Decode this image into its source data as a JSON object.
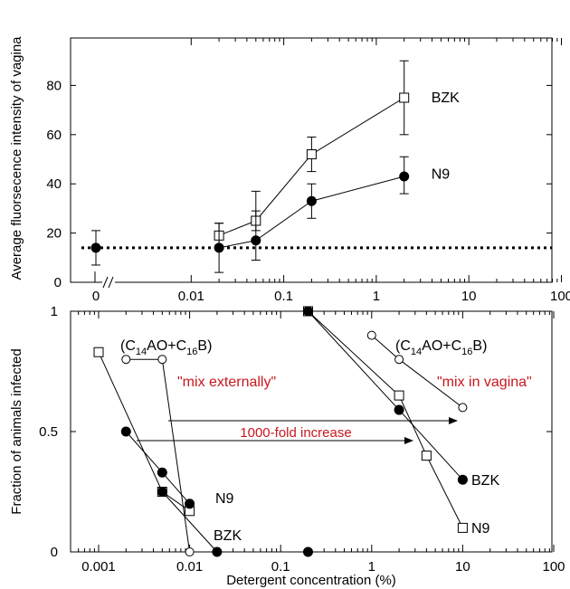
{
  "chart_data": [
    {
      "type": "line",
      "ylabel": "Average fluorsecence intensity of vagina",
      "xscale": "log",
      "xlim": [
        0.001,
        100
      ],
      "ylim": [
        0,
        90
      ],
      "yticks": [
        0,
        20,
        40,
        60,
        80
      ],
      "ytick_labels": [
        "0",
        "20",
        "40",
        "60",
        "80"
      ],
      "xtick_labels": [
        "0",
        "0.01",
        "0.1",
        "1",
        "10",
        "100"
      ],
      "axis_break": "//",
      "baseline": {
        "y": 14,
        "style": "dotted"
      },
      "series": [
        {
          "name": "BZK",
          "marker": "open-square",
          "points": [
            {
              "x": 0.02,
              "y": 19,
              "err_low": 15,
              "err_high": 24
            },
            {
              "x": 0.05,
              "y": 25,
              "err_low": 21,
              "err_high": 29
            },
            {
              "x": 0.2,
              "y": 52,
              "err_low": 45,
              "err_high": 59
            },
            {
              "x": 2,
              "y": 75,
              "err_low": 60,
              "err_high": 90
            }
          ]
        },
        {
          "name": "N9",
          "marker": "filled-circle",
          "points": [
            {
              "x": 0,
              "y": 14,
              "err_low": 7,
              "err_high": 21
            },
            {
              "x": 0.02,
              "y": 14,
              "err_low": 4,
              "err_high": 24
            },
            {
              "x": 0.05,
              "y": 17,
              "err_low": 9,
              "err_high": 37
            },
            {
              "x": 0.2,
              "y": 33,
              "err_low": 26,
              "err_high": 40
            },
            {
              "x": 2,
              "y": 43,
              "err_low": 36,
              "err_high": 51
            }
          ]
        }
      ]
    },
    {
      "type": "line",
      "xlabel": "Detergent concentration (%)",
      "ylabel": "Fraction of animals infected",
      "xscale": "log",
      "xlim": [
        0.0005,
        100
      ],
      "ylim": [
        0,
        1
      ],
      "yticks": [
        0,
        0.5,
        1
      ],
      "ytick_labels": [
        "0",
        "0.5",
        "1"
      ],
      "xticks": [
        0.001,
        0.01,
        0.1,
        1,
        10,
        100
      ],
      "xtick_labels": [
        "0.001",
        "0.01",
        "0.1",
        "1",
        "10",
        "100"
      ],
      "series": [
        {
          "name": "N9",
          "group": "mix externally",
          "marker": "open-square",
          "points": [
            {
              "x": 0.001,
              "y": 0.83
            },
            {
              "x": 0.005,
              "y": 0.25
            },
            {
              "x": 0.01,
              "y": 0.17
            }
          ]
        },
        {
          "name": "",
          "group": "mix externally",
          "marker": "filled-circle",
          "points": [
            {
              "x": 0.002,
              "y": 0.5
            },
            {
              "x": 0.005,
              "y": 0.33
            },
            {
              "x": 0.01,
              "y": 0.2
            }
          ]
        },
        {
          "name": "",
          "group": "mix externally",
          "marker": "filled-circle",
          "points": [
            {
              "x": 0.005,
              "y": 0.25
            },
            {
              "x": 0.02,
              "y": 0
            }
          ]
        },
        {
          "name": "",
          "group": "mix externally",
          "marker": "open-circle",
          "points": [
            {
              "x": 0.002,
              "y": 0.8
            },
            {
              "x": 0.005,
              "y": 0.8
            },
            {
              "x": 0.01,
              "y": 0
            }
          ]
        },
        {
          "name": "",
          "group": "mix externally",
          "marker": "filled-circle",
          "points": [
            {
              "x": 0.2,
              "y": 0
            }
          ]
        },
        {
          "name": "N9",
          "group": "mix in vagina",
          "marker": "open-square",
          "points": [
            {
              "x": 0.2,
              "y": 1
            },
            {
              "x": 2,
              "y": 0.65
            },
            {
              "x": 4,
              "y": 0.4
            },
            {
              "x": 10,
              "y": 0.1
            }
          ]
        },
        {
          "name": "BZK",
          "group": "mix in vagina",
          "marker": "filled-circle",
          "points": [
            {
              "x": 0.2,
              "y": 1
            },
            {
              "x": 2,
              "y": 0.59
            },
            {
              "x": 10,
              "y": 0.3
            }
          ]
        },
        {
          "name": "",
          "group": "mix in vagina",
          "marker": "open-circle",
          "points": [
            {
              "x": 1,
              "y": 0.9
            },
            {
              "x": 2,
              "y": 0.8
            },
            {
              "x": 10,
              "y": 0.6
            }
          ]
        }
      ],
      "annotations": {
        "compound_left": {
          "pre": "(C",
          "sub1": "14",
          "mid": "AO+C",
          "sub2": "16",
          "post": "B)"
        },
        "compound_right": {
          "pre": "(C",
          "sub1": "14",
          "mid": "AO+C",
          "sub2": "16",
          "post": "B)"
        },
        "mix_externally": "\"mix externally\"",
        "mix_in_vagina": "\"mix in vagina\"",
        "increase": "1000-fold increase",
        "label_n9_left": "N9",
        "label_bzk_left": "BZK",
        "label_bzk_right": "BZK",
        "label_n9_right": "N9",
        "red_color": "#c8171e"
      }
    }
  ]
}
